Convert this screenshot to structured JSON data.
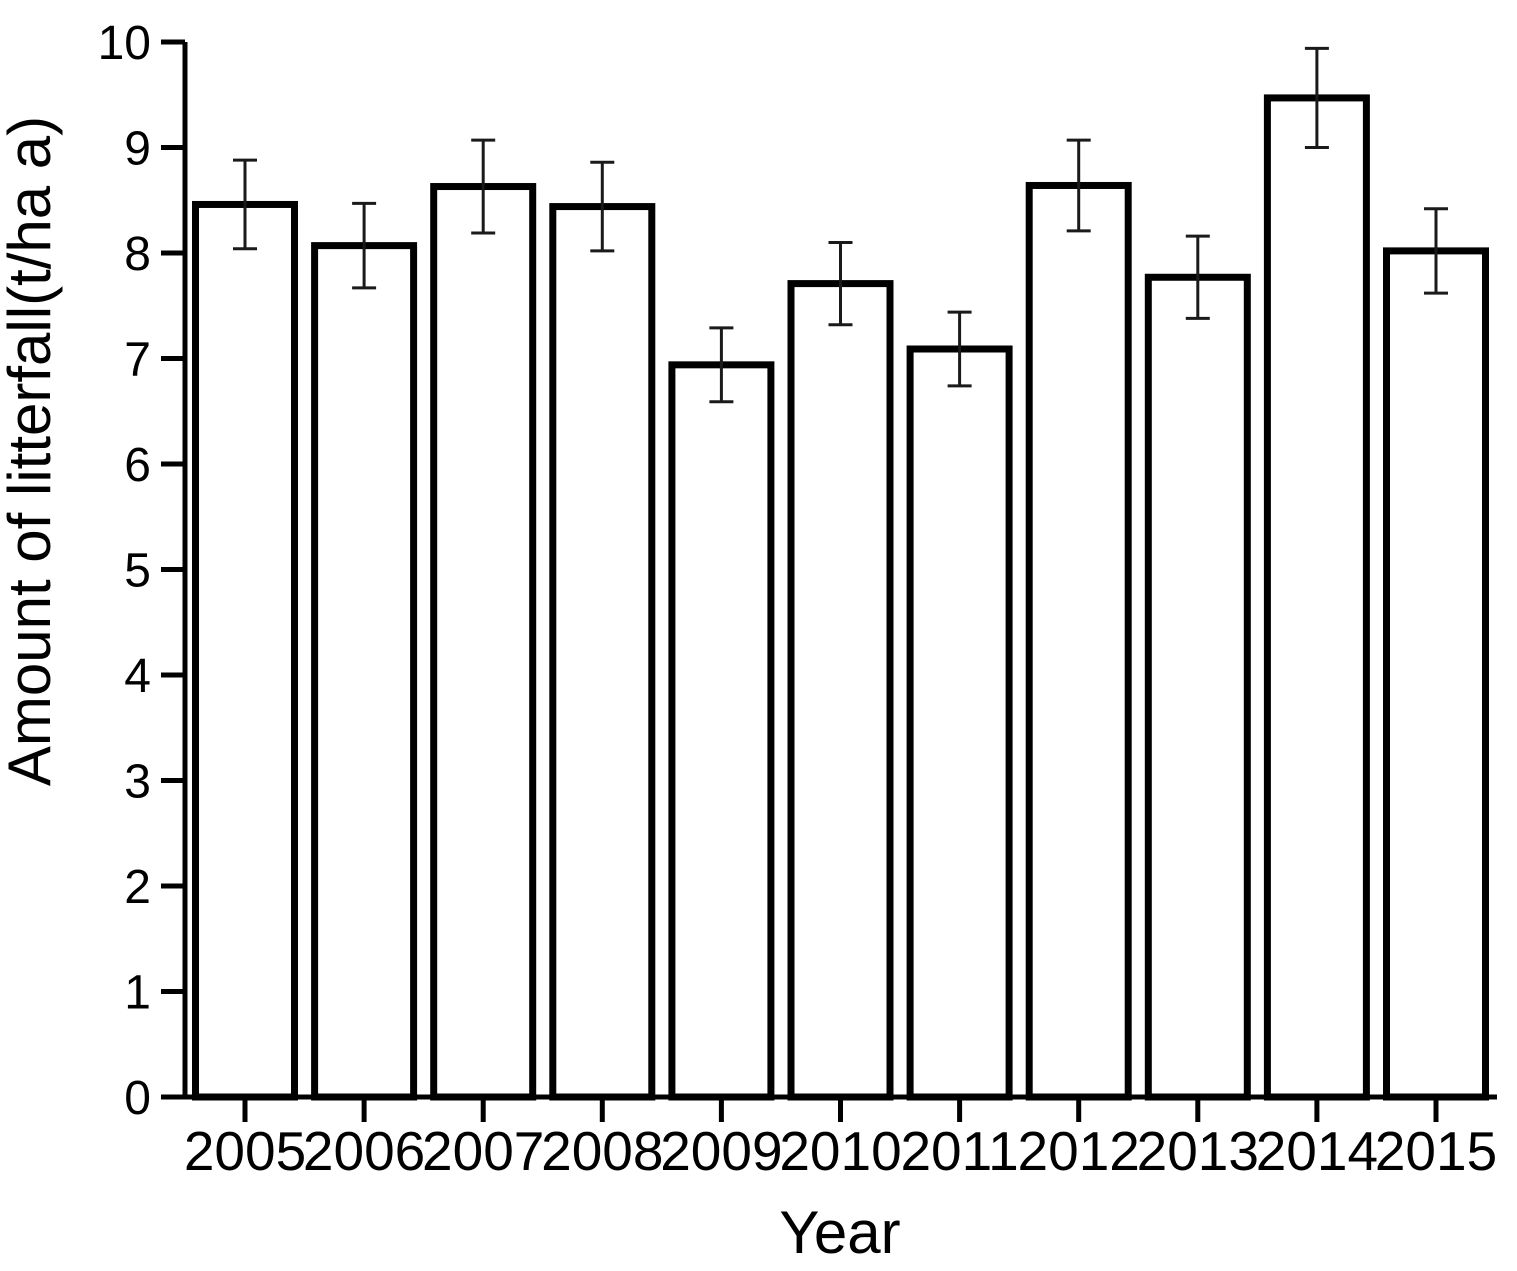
{
  "chart_data": {
    "type": "bar",
    "title": "",
    "xlabel": "Year",
    "ylabel": "Amount of litterfall(t/ha a)",
    "categories": [
      "2005",
      "2006",
      "2007",
      "2008",
      "2009",
      "2010",
      "2011",
      "2012",
      "2013",
      "2014",
      "2015"
    ],
    "values": [
      8.46,
      8.07,
      8.63,
      8.44,
      6.94,
      7.71,
      7.09,
      8.64,
      7.77,
      9.47,
      8.02
    ],
    "errors": [
      0.42,
      0.4,
      0.44,
      0.42,
      0.35,
      0.39,
      0.35,
      0.43,
      0.39,
      0.47,
      0.4
    ],
    "error_bars": true,
    "ylim": [
      0,
      10
    ],
    "yticks": [
      0,
      1,
      2,
      3,
      4,
      5,
      6,
      7,
      8,
      9,
      10
    ],
    "grid": false,
    "legend": "none",
    "bar_fill": "#ffffff",
    "bar_stroke": "#000000",
    "background": "#ffffff"
  }
}
